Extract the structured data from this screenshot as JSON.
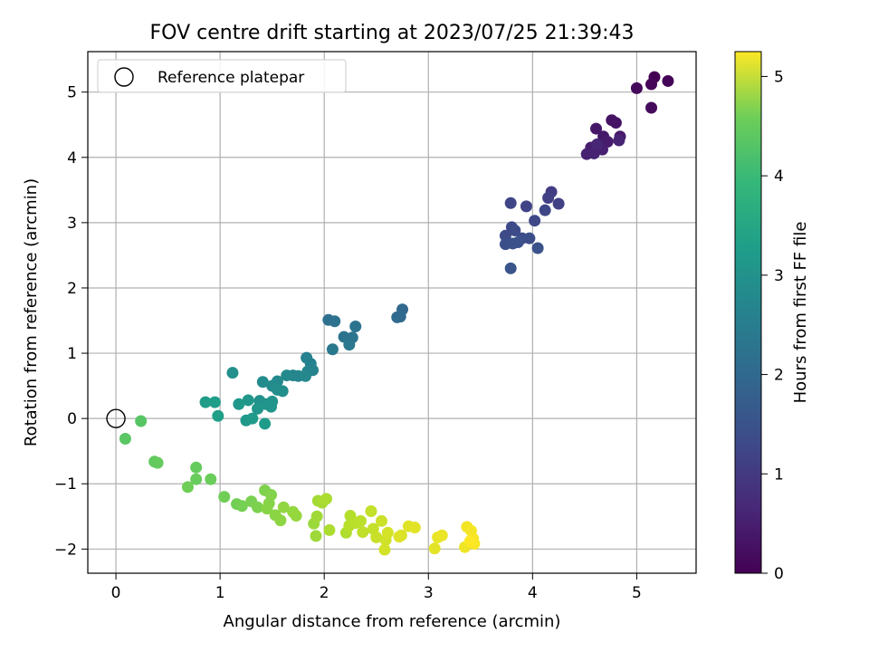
{
  "chart_data": {
    "type": "scatter",
    "title": "FOV centre drift starting at 2023/07/25 21:39:43",
    "xlabel": "Angular distance from reference (arcmin)",
    "ylabel": "Rotation from reference (arcmin)",
    "colorbar_label": "Hours from first FF file",
    "xlim": [
      -0.27,
      5.57
    ],
    "ylim": [
      -2.37,
      5.62
    ],
    "x_ticks": [
      0,
      1,
      2,
      3,
      4,
      5
    ],
    "y_ticks": [
      -2,
      -1,
      0,
      1,
      2,
      3,
      4,
      5
    ],
    "colorbar_ticks": [
      0,
      1,
      2,
      3,
      4,
      5
    ],
    "colorbar_range": [
      0,
      5.25
    ],
    "colormap": "viridis",
    "grid": true,
    "legend": {
      "location": "upper-left",
      "entries": [
        "Reference platepar"
      ]
    },
    "reference_point": {
      "x": 0,
      "y": 0
    },
    "points": [
      {
        "x": 5.17,
        "y": 5.23,
        "c": 0.0
      },
      {
        "x": 5.3,
        "y": 5.17,
        "c": 0.05
      },
      {
        "x": 5.14,
        "y": 5.12,
        "c": 0.08
      },
      {
        "x": 5.0,
        "y": 5.06,
        "c": 0.12
      },
      {
        "x": 5.14,
        "y": 4.76,
        "c": 0.15
      },
      {
        "x": 4.76,
        "y": 4.57,
        "c": 0.25
      },
      {
        "x": 4.8,
        "y": 4.53,
        "c": 0.28
      },
      {
        "x": 4.61,
        "y": 4.44,
        "c": 0.32
      },
      {
        "x": 4.68,
        "y": 4.32,
        "c": 0.35
      },
      {
        "x": 4.84,
        "y": 4.32,
        "c": 0.38
      },
      {
        "x": 4.72,
        "y": 4.24,
        "c": 0.4
      },
      {
        "x": 4.56,
        "y": 4.15,
        "c": 0.42
      },
      {
        "x": 4.67,
        "y": 4.12,
        "c": 0.45
      },
      {
        "x": 4.52,
        "y": 4.05,
        "c": 0.48
      },
      {
        "x": 4.59,
        "y": 4.06,
        "c": 0.5
      },
      {
        "x": 4.83,
        "y": 4.26,
        "c": 0.52
      },
      {
        "x": 4.62,
        "y": 4.2,
        "c": 0.55
      },
      {
        "x": 4.18,
        "y": 3.47,
        "c": 0.95
      },
      {
        "x": 4.15,
        "y": 3.38,
        "c": 1.0
      },
      {
        "x": 4.25,
        "y": 3.29,
        "c": 1.02
      },
      {
        "x": 3.94,
        "y": 3.25,
        "c": 1.05
      },
      {
        "x": 3.79,
        "y": 3.3,
        "c": 1.08
      },
      {
        "x": 4.12,
        "y": 3.19,
        "c": 1.1
      },
      {
        "x": 4.02,
        "y": 3.03,
        "c": 1.12
      },
      {
        "x": 3.8,
        "y": 2.93,
        "c": 1.15
      },
      {
        "x": 3.83,
        "y": 2.88,
        "c": 1.18
      },
      {
        "x": 3.74,
        "y": 2.8,
        "c": 1.2
      },
      {
        "x": 3.9,
        "y": 2.76,
        "c": 1.22
      },
      {
        "x": 3.97,
        "y": 2.76,
        "c": 1.25
      },
      {
        "x": 3.74,
        "y": 2.67,
        "c": 1.28
      },
      {
        "x": 3.81,
        "y": 2.68,
        "c": 1.3
      },
      {
        "x": 3.86,
        "y": 2.7,
        "c": 1.32
      },
      {
        "x": 4.05,
        "y": 2.61,
        "c": 1.35
      },
      {
        "x": 3.79,
        "y": 2.3,
        "c": 1.38
      },
      {
        "x": 2.75,
        "y": 1.67,
        "c": 1.75
      },
      {
        "x": 2.73,
        "y": 1.56,
        "c": 1.78
      },
      {
        "x": 2.7,
        "y": 1.55,
        "c": 1.8
      },
      {
        "x": 2.04,
        "y": 1.51,
        "c": 1.95
      },
      {
        "x": 2.1,
        "y": 1.49,
        "c": 1.98
      },
      {
        "x": 2.3,
        "y": 1.41,
        "c": 2.0
      },
      {
        "x": 2.19,
        "y": 1.25,
        "c": 2.02
      },
      {
        "x": 2.27,
        "y": 1.24,
        "c": 2.05
      },
      {
        "x": 2.24,
        "y": 1.13,
        "c": 2.08
      },
      {
        "x": 2.08,
        "y": 1.06,
        "c": 2.1
      },
      {
        "x": 1.83,
        "y": 0.93,
        "c": 2.3
      },
      {
        "x": 1.87,
        "y": 0.84,
        "c": 2.32
      },
      {
        "x": 1.89,
        "y": 0.74,
        "c": 2.35
      },
      {
        "x": 1.84,
        "y": 0.72,
        "c": 2.38
      },
      {
        "x": 1.7,
        "y": 0.66,
        "c": 2.4
      },
      {
        "x": 1.75,
        "y": 0.65,
        "c": 2.42
      },
      {
        "x": 1.82,
        "y": 0.65,
        "c": 2.45
      },
      {
        "x": 1.64,
        "y": 0.66,
        "c": 2.48
      },
      {
        "x": 1.55,
        "y": 0.57,
        "c": 2.5
      },
      {
        "x": 1.5,
        "y": 0.5,
        "c": 2.52
      },
      {
        "x": 1.41,
        "y": 0.56,
        "c": 2.55
      },
      {
        "x": 1.55,
        "y": 0.44,
        "c": 2.58
      },
      {
        "x": 1.6,
        "y": 0.42,
        "c": 2.6
      },
      {
        "x": 1.12,
        "y": 0.7,
        "c": 2.62
      },
      {
        "x": 1.38,
        "y": 0.27,
        "c": 2.65
      },
      {
        "x": 1.44,
        "y": 0.22,
        "c": 2.68
      },
      {
        "x": 1.5,
        "y": 0.26,
        "c": 2.7
      },
      {
        "x": 1.49,
        "y": 0.18,
        "c": 2.72
      },
      {
        "x": 1.36,
        "y": 0.15,
        "c": 2.75
      },
      {
        "x": 1.27,
        "y": 0.28,
        "c": 2.78
      },
      {
        "x": 1.18,
        "y": 0.22,
        "c": 2.8
      },
      {
        "x": 1.25,
        "y": -0.03,
        "c": 2.82
      },
      {
        "x": 1.31,
        "y": 0.0,
        "c": 2.85
      },
      {
        "x": 1.43,
        "y": -0.08,
        "c": 2.88
      },
      {
        "x": 0.86,
        "y": 0.25,
        "c": 2.9
      },
      {
        "x": 0.95,
        "y": 0.25,
        "c": 2.92
      },
      {
        "x": 0.98,
        "y": 0.04,
        "c": 2.95
      },
      {
        "x": 0.24,
        "y": -0.04,
        "c": 3.85
      },
      {
        "x": 0.09,
        "y": -0.31,
        "c": 3.88
      },
      {
        "x": 0.37,
        "y": -0.66,
        "c": 3.95
      },
      {
        "x": 0.4,
        "y": -0.68,
        "c": 3.98
      },
      {
        "x": 0.77,
        "y": -0.75,
        "c": 4.0
      },
      {
        "x": 0.77,
        "y": -0.93,
        "c": 4.02
      },
      {
        "x": 0.91,
        "y": -0.93,
        "c": 4.05
      },
      {
        "x": 0.69,
        "y": -1.05,
        "c": 4.08
      },
      {
        "x": 1.04,
        "y": -1.2,
        "c": 4.1
      },
      {
        "x": 1.16,
        "y": -1.31,
        "c": 4.12
      },
      {
        "x": 1.21,
        "y": -1.34,
        "c": 4.15
      },
      {
        "x": 1.3,
        "y": -1.27,
        "c": 4.18
      },
      {
        "x": 1.36,
        "y": -1.36,
        "c": 4.2
      },
      {
        "x": 1.43,
        "y": -1.1,
        "c": 4.22
      },
      {
        "x": 1.49,
        "y": -1.17,
        "c": 4.25
      },
      {
        "x": 1.47,
        "y": -1.3,
        "c": 4.28
      },
      {
        "x": 1.45,
        "y": -1.38,
        "c": 4.3
      },
      {
        "x": 1.53,
        "y": -1.48,
        "c": 4.32
      },
      {
        "x": 1.58,
        "y": -1.56,
        "c": 4.35
      },
      {
        "x": 1.61,
        "y": -1.36,
        "c": 4.38
      },
      {
        "x": 1.7,
        "y": -1.43,
        "c": 4.4
      },
      {
        "x": 1.73,
        "y": -1.49,
        "c": 4.42
      },
      {
        "x": 1.9,
        "y": -1.61,
        "c": 4.45
      },
      {
        "x": 1.92,
        "y": -1.8,
        "c": 4.48
      },
      {
        "x": 1.93,
        "y": -1.5,
        "c": 4.5
      },
      {
        "x": 1.94,
        "y": -1.26,
        "c": 4.52
      },
      {
        "x": 1.98,
        "y": -1.29,
        "c": 4.55
      },
      {
        "x": 2.02,
        "y": -1.23,
        "c": 4.58
      },
      {
        "x": 2.05,
        "y": -1.71,
        "c": 4.6
      },
      {
        "x": 2.21,
        "y": -1.75,
        "c": 4.62
      },
      {
        "x": 2.25,
        "y": -1.49,
        "c": 4.65
      },
      {
        "x": 2.24,
        "y": -1.64,
        "c": 4.68
      },
      {
        "x": 2.3,
        "y": -1.6,
        "c": 4.7
      },
      {
        "x": 2.35,
        "y": -1.57,
        "c": 4.72
      },
      {
        "x": 2.37,
        "y": -1.74,
        "c": 4.75
      },
      {
        "x": 2.45,
        "y": -1.42,
        "c": 4.78
      },
      {
        "x": 2.47,
        "y": -1.69,
        "c": 4.8
      },
      {
        "x": 2.5,
        "y": -1.82,
        "c": 4.82
      },
      {
        "x": 2.55,
        "y": -1.57,
        "c": 4.85
      },
      {
        "x": 2.59,
        "y": -1.86,
        "c": 4.88
      },
      {
        "x": 2.58,
        "y": -2.01,
        "c": 4.9
      },
      {
        "x": 2.61,
        "y": -1.75,
        "c": 4.92
      },
      {
        "x": 2.74,
        "y": -1.79,
        "c": 4.95
      },
      {
        "x": 2.72,
        "y": -1.81,
        "c": 4.98
      },
      {
        "x": 2.81,
        "y": -1.65,
        "c": 5.0
      },
      {
        "x": 2.87,
        "y": -1.67,
        "c": 5.02
      },
      {
        "x": 3.06,
        "y": -1.99,
        "c": 5.05
      },
      {
        "x": 3.09,
        "y": -1.82,
        "c": 5.08
      },
      {
        "x": 3.13,
        "y": -1.79,
        "c": 5.1
      },
      {
        "x": 3.35,
        "y": -1.97,
        "c": 5.12
      },
      {
        "x": 3.37,
        "y": -1.66,
        "c": 5.15
      },
      {
        "x": 3.41,
        "y": -1.72,
        "c": 5.18
      },
      {
        "x": 3.43,
        "y": -1.84,
        "c": 5.2
      },
      {
        "x": 3.44,
        "y": -1.92,
        "c": 5.22
      },
      {
        "x": 3.4,
        "y": -1.88,
        "c": 5.25
      }
    ]
  }
}
